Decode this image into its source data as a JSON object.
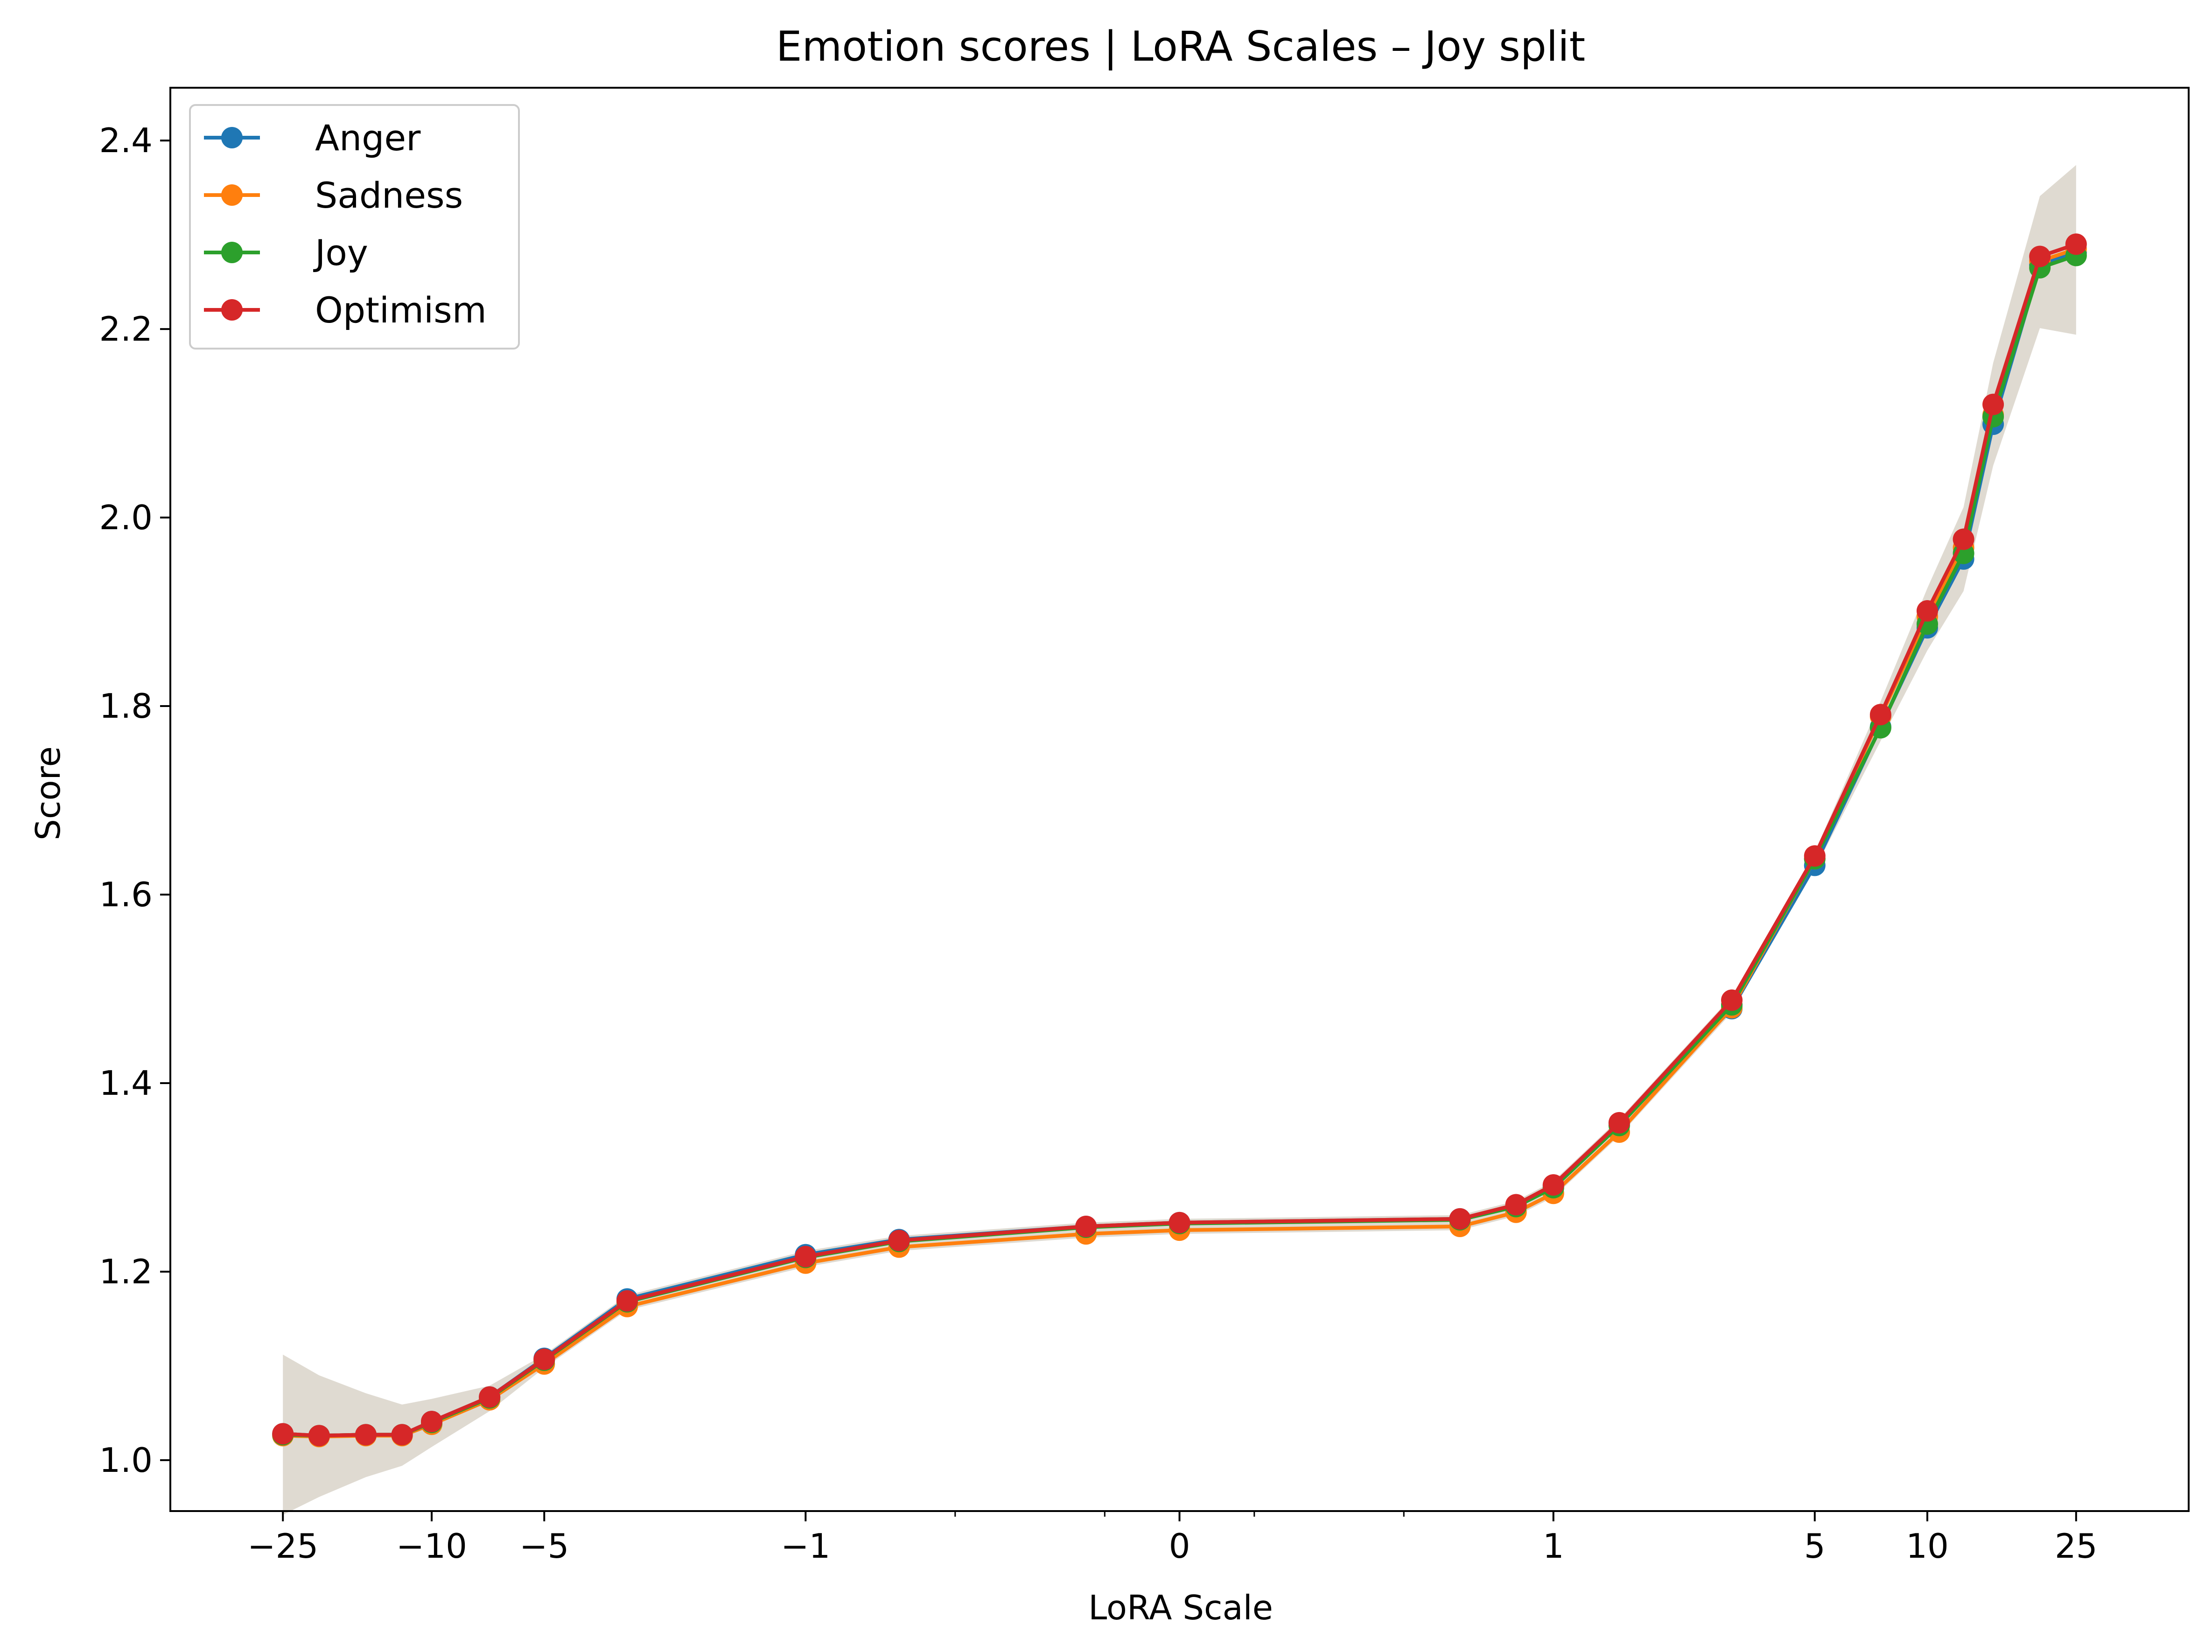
{
  "chart_data": {
    "type": "line",
    "title": "Emotion scores | LoRA Scales – Joy split",
    "xlabel": "LoRA Scale",
    "ylabel": "Score",
    "x_scale": "symlog",
    "x_scale_linthresh": 1,
    "xlim": [
      -50,
      50
    ],
    "ylim": [
      0.946,
      2.456
    ],
    "x_ticks": [
      {
        "value": -25,
        "label": "−25"
      },
      {
        "value": -10,
        "label": "−10"
      },
      {
        "value": -5,
        "label": "−5"
      },
      {
        "value": -1,
        "label": "−1"
      },
      {
        "value": 0,
        "label": "0"
      },
      {
        "value": 1,
        "label": "1"
      },
      {
        "value": 5,
        "label": "5"
      },
      {
        "value": 10,
        "label": "10"
      },
      {
        "value": 25,
        "label": "25"
      }
    ],
    "x_minor_ticks": [
      -0.6,
      -0.2,
      0.2,
      0.6
    ],
    "y_ticks": [
      {
        "value": 1.0,
        "label": "1.0"
      },
      {
        "value": 1.2,
        "label": "1.2"
      },
      {
        "value": 1.4,
        "label": "1.4"
      },
      {
        "value": 1.6,
        "label": "1.6"
      },
      {
        "value": 1.8,
        "label": "1.8"
      },
      {
        "value": 2.0,
        "label": "2.0"
      },
      {
        "value": 2.2,
        "label": "2.2"
      },
      {
        "value": 2.4,
        "label": "2.4"
      }
    ],
    "legend_position": "top-left",
    "grid": false,
    "x": [
      -25,
      -20,
      -15,
      -12,
      -10,
      -7,
      -5,
      -3,
      -1,
      -0.75,
      -0.25,
      0,
      0.75,
      0.9,
      1,
      1.5,
      3,
      5,
      7.5,
      10,
      12.5,
      15,
      20,
      25
    ],
    "series": [
      {
        "name": "Anger",
        "color": "#1f77b4",
        "values": [
          1.028,
          1.026,
          1.027,
          1.027,
          1.041,
          1.067,
          1.108,
          1.171,
          1.218,
          1.234,
          1.248,
          1.252,
          1.256,
          1.27,
          1.291,
          1.357,
          1.479,
          1.631,
          1.778,
          1.883,
          1.956,
          2.099,
          2.268,
          2.281
        ]
      },
      {
        "name": "Sadness",
        "color": "#ff7f0e",
        "values": [
          1.026,
          1.025,
          1.026,
          1.026,
          1.038,
          1.064,
          1.102,
          1.163,
          1.209,
          1.226,
          1.24,
          1.244,
          1.248,
          1.263,
          1.283,
          1.348,
          1.48,
          1.638,
          1.789,
          1.895,
          1.968,
          2.109,
          2.272,
          2.285
        ]
      },
      {
        "name": "Joy",
        "color": "#2ca02c",
        "values": [
          1.027,
          1.026,
          1.027,
          1.027,
          1.04,
          1.066,
          1.106,
          1.168,
          1.215,
          1.232,
          1.247,
          1.251,
          1.255,
          1.269,
          1.289,
          1.355,
          1.483,
          1.638,
          1.777,
          1.887,
          1.962,
          2.107,
          2.265,
          2.278
        ]
      },
      {
        "name": "Optimism",
        "color": "#d62728",
        "values": [
          1.028,
          1.026,
          1.027,
          1.027,
          1.041,
          1.067,
          1.107,
          1.169,
          1.216,
          1.233,
          1.248,
          1.252,
          1.256,
          1.271,
          1.292,
          1.358,
          1.488,
          1.641,
          1.791,
          1.901,
          1.977,
          2.12,
          2.277,
          2.29
        ]
      }
    ]
  }
}
